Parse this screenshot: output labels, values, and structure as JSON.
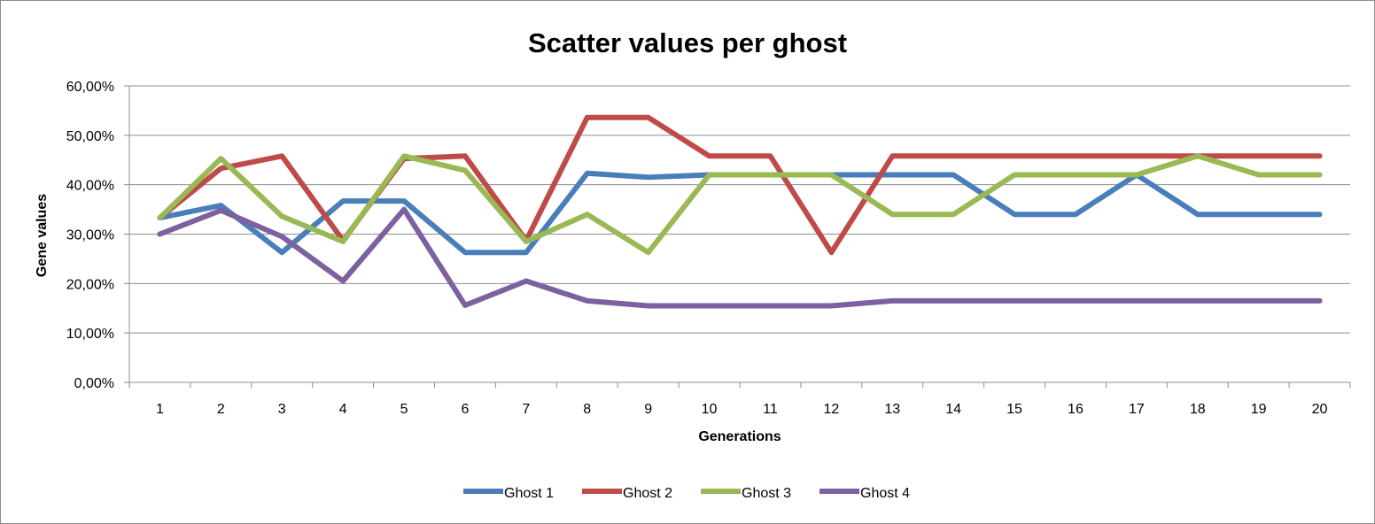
{
  "chart_data": {
    "type": "line",
    "title": "Scatter values per ghost",
    "xlabel": "Generations",
    "ylabel": "Gene values",
    "categories": [
      "1",
      "2",
      "3",
      "4",
      "5",
      "6",
      "7",
      "8",
      "9",
      "10",
      "11",
      "12",
      "13",
      "14",
      "15",
      "16",
      "17",
      "18",
      "19",
      "20"
    ],
    "ylim": [
      0,
      60
    ],
    "yticks": [
      0,
      10,
      20,
      30,
      40,
      50,
      60
    ],
    "ytick_labels": [
      "0,00%",
      "10,00%",
      "20,00%",
      "30,00%",
      "40,00%",
      "50,00%",
      "60,00%"
    ],
    "grid": true,
    "legend_position": "bottom",
    "series": [
      {
        "name": "Ghost 1",
        "color": "#4a7ebb",
        "values": [
          33.3,
          35.8,
          26.3,
          36.7,
          36.7,
          26.3,
          26.3,
          42.3,
          41.5,
          42.0,
          42.0,
          42.0,
          42.0,
          42.0,
          34.0,
          34.0,
          42.0,
          34.0,
          34.0,
          34.0
        ]
      },
      {
        "name": "Ghost 2",
        "color": "#be4b48",
        "values": [
          33.3,
          43.3,
          45.8,
          28.7,
          45.3,
          45.8,
          28.7,
          53.6,
          53.6,
          45.8,
          45.8,
          26.3,
          45.8,
          45.8,
          45.8,
          45.8,
          45.8,
          45.8,
          45.8,
          45.8
        ]
      },
      {
        "name": "Ghost 3",
        "color": "#98b954",
        "values": [
          33.3,
          45.3,
          33.6,
          28.5,
          45.8,
          42.9,
          28.5,
          34.0,
          26.3,
          42.0,
          42.0,
          42.0,
          34.0,
          34.0,
          42.0,
          42.0,
          42.0,
          45.8,
          42.0,
          42.0
        ]
      },
      {
        "name": "Ghost 4",
        "color": "#7d60a0",
        "values": [
          30.0,
          34.8,
          29.5,
          20.5,
          35.0,
          15.6,
          20.5,
          16.5,
          15.5,
          15.5,
          15.5,
          15.5,
          16.5,
          16.5,
          16.5,
          16.5,
          16.5,
          16.5,
          16.5,
          16.5
        ]
      }
    ]
  }
}
